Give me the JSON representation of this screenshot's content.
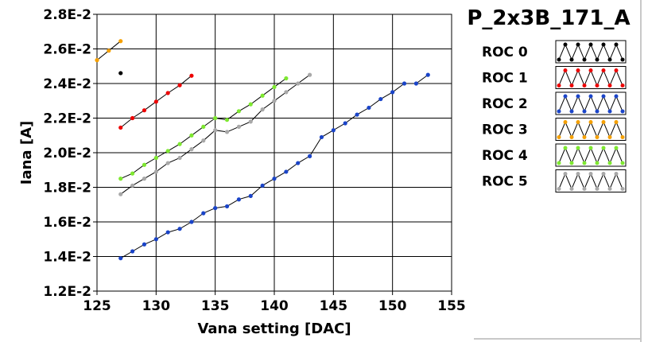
{
  "chart_data": {
    "type": "line",
    "title": "P_2x3B_171_A",
    "xlabel": "Vana setting [DAC]",
    "ylabel": "Iana [A]",
    "xlim": [
      125,
      155
    ],
    "ylim": [
      0.012,
      0.028
    ],
    "x_ticks": [
      125,
      130,
      135,
      140,
      145,
      150,
      155
    ],
    "x_tick_labels": [
      "125",
      "130",
      "135",
      "140",
      "145",
      "150",
      "155"
    ],
    "y_ticks": [
      0.012,
      0.014,
      0.016,
      0.018,
      0.02,
      0.022,
      0.024,
      0.026,
      0.028
    ],
    "y_tick_labels": [
      "1.2E-2",
      "1.4E-2",
      "1.6E-2",
      "1.8E-2",
      "2.0E-2",
      "2.2E-2",
      "2.4E-2",
      "2.6E-2",
      "2.8E-2"
    ],
    "grid": true,
    "legend_position": "right",
    "series": [
      {
        "name": "ROC 0",
        "color": "#000000",
        "line_color": "#000000",
        "x": [
          127
        ],
        "y": [
          0.0246
        ]
      },
      {
        "name": "ROC 1",
        "color": "#ee0000",
        "line_color": "#000000",
        "x": [
          127,
          128,
          129,
          130,
          131,
          132,
          133
        ],
        "y": [
          0.02145,
          0.022,
          0.02245,
          0.02295,
          0.02345,
          0.0239,
          0.02445
        ]
      },
      {
        "name": "ROC 2",
        "color": "#1a44c8",
        "line_color": "#000000",
        "x": [
          127,
          128,
          129,
          130,
          131,
          132,
          133,
          134,
          135,
          136,
          137,
          138,
          139,
          140,
          141,
          142,
          143,
          144,
          145,
          146,
          147,
          148,
          149,
          150,
          151,
          152,
          153
        ],
        "y": [
          0.0139,
          0.0143,
          0.0147,
          0.015,
          0.0154,
          0.0156,
          0.016,
          0.0165,
          0.0168,
          0.0169,
          0.0173,
          0.0175,
          0.0181,
          0.0185,
          0.0189,
          0.0194,
          0.0198,
          0.0209,
          0.0213,
          0.0217,
          0.0222,
          0.0226,
          0.0231,
          0.0235,
          0.024,
          0.024,
          0.0245
        ]
      },
      {
        "name": "ROC 3",
        "color": "#f5a000",
        "line_color": "#000000",
        "x": [
          125,
          126,
          127
        ],
        "y": [
          0.02535,
          0.0259,
          0.02645
        ]
      },
      {
        "name": "ROC 4",
        "color": "#7ee830",
        "line_color": "#000000",
        "x": [
          127,
          128,
          129,
          130,
          131,
          132,
          133,
          134,
          135,
          136,
          137,
          138,
          139,
          140,
          141
        ],
        "y": [
          0.0185,
          0.0188,
          0.0193,
          0.0197,
          0.0201,
          0.0205,
          0.021,
          0.0215,
          0.022,
          0.0219,
          0.0224,
          0.0228,
          0.0233,
          0.0238,
          0.0243
        ]
      },
      {
        "name": "ROC 5",
        "color": "#a8a8a8",
        "line_color": "#000000",
        "x": [
          127,
          128,
          129,
          130,
          131,
          132,
          133,
          134,
          135,
          136,
          137,
          138,
          139,
          140,
          141,
          142,
          143
        ],
        "y": [
          0.0176,
          0.0181,
          0.0185,
          0.0189,
          0.0194,
          0.0197,
          0.0202,
          0.0207,
          0.0213,
          0.0212,
          0.0215,
          0.0218,
          0.0225,
          0.023,
          0.0235,
          0.024,
          0.0245
        ]
      }
    ]
  }
}
